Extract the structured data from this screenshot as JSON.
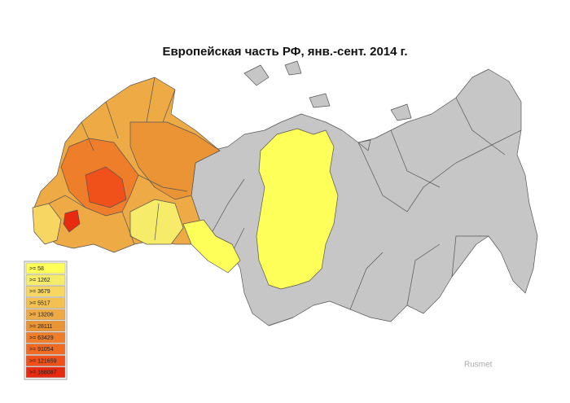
{
  "title": "Европейская часть РФ, янв.-сент. 2014 г.",
  "legend": [
    {
      "label": ">=  58",
      "color": "#ffff5a"
    },
    {
      "label": ">=  1262",
      "color": "#f6ec6a"
    },
    {
      "label": ">=  3679",
      "color": "#f7d662"
    },
    {
      "label": ">=  5517",
      "color": "#f3c052"
    },
    {
      "label": ">=  13206",
      "color": "#eeaa45"
    },
    {
      "label": ">=  28111",
      "color": "#ea9436"
    },
    {
      "label": ">=  63429",
      "color": "#ee7e2a"
    },
    {
      "label": ">=  91054",
      "color": "#f06a22"
    },
    {
      "label": ">=  121659",
      "color": "#f0501a"
    },
    {
      "label": ">=  168087",
      "color": "#e82a10"
    }
  ],
  "watermark": "Rusmet"
}
